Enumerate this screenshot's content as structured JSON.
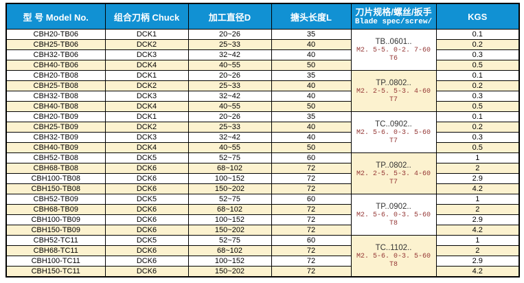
{
  "colors": {
    "header_bg": "#1191d3",
    "header_text": "#ffffff",
    "stripe_bg": "#fcf2cf",
    "spec_accent_text": "#943634",
    "border": "#000000"
  },
  "header": {
    "columns": [
      {
        "label": "型 号 Model No."
      },
      {
        "label": "组合刀柄 Chuck"
      },
      {
        "label": "加工直径D"
      },
      {
        "label": "搪头长度L"
      },
      {
        "label": "刀片规格/螺丝/扳手",
        "sublabel": "Blade spec/screw/"
      },
      {
        "label": "KGS"
      }
    ]
  },
  "table": {
    "rows": [
      {
        "model": "CBH20-TB06",
        "chuck": "DCK1",
        "diameter": "20~26",
        "length": "35",
        "kgs": "0.1"
      },
      {
        "model": "CBH25-TB06",
        "chuck": "DCK2",
        "diameter": "25~33",
        "length": "40",
        "kgs": "0.2"
      },
      {
        "model": "CBH32-TB06",
        "chuck": "DCK3",
        "diameter": "32~42",
        "length": "40",
        "kgs": "0.3"
      },
      {
        "model": "CBH40-TB06",
        "chuck": "DCK4",
        "diameter": "40~55",
        "length": "50",
        "kgs": "0.5"
      },
      {
        "model": "CBH20-TB08",
        "chuck": "DCK1",
        "diameter": "20~26",
        "length": "35",
        "kgs": "0.1"
      },
      {
        "model": "CBH25-TB08",
        "chuck": "DCK2",
        "diameter": "25~33",
        "length": "40",
        "kgs": "0.2"
      },
      {
        "model": "CBH32-TB08",
        "chuck": "DCK3",
        "diameter": "32~42",
        "length": "40",
        "kgs": "0.3"
      },
      {
        "model": "CBH40-TB08",
        "chuck": "DCK4",
        "diameter": "40~55",
        "length": "50",
        "kgs": "0.5"
      },
      {
        "model": "CBH20-TB09",
        "chuck": "DCK1",
        "diameter": "20~26",
        "length": "35",
        "kgs": "0.1"
      },
      {
        "model": "CBH25-TB09",
        "chuck": "DCK2",
        "diameter": "25~33",
        "length": "40",
        "kgs": "0.2"
      },
      {
        "model": "CBH32-TB09",
        "chuck": "DCK3",
        "diameter": "32~42",
        "length": "40",
        "kgs": "0.3"
      },
      {
        "model": "CBH40-TB09",
        "chuck": "DCK4",
        "diameter": "40~55",
        "length": "50",
        "kgs": "0.5"
      },
      {
        "model": "CBH52-TB08",
        "chuck": "DCK5",
        "diameter": "52~75",
        "length": "60",
        "kgs": "1"
      },
      {
        "model": "CBH68-TB08",
        "chuck": "DCK6",
        "diameter": "68~102",
        "length": "72",
        "kgs": "2"
      },
      {
        "model": "CBH100-TB08",
        "chuck": "DCK6",
        "diameter": "100~152",
        "length": "72",
        "kgs": "2.9"
      },
      {
        "model": "CBH150-TB08",
        "chuck": "DCK6",
        "diameter": "150~202",
        "length": "72",
        "kgs": "4.2"
      },
      {
        "model": "CBH52-TB09",
        "chuck": "DCK5",
        "diameter": "52~75",
        "length": "60",
        "kgs": "1"
      },
      {
        "model": "CBH68-TB09",
        "chuck": "DCK6",
        "diameter": "68~102",
        "length": "72",
        "kgs": "2"
      },
      {
        "model": "CBH100-TB09",
        "chuck": "DCK6",
        "diameter": "100~152",
        "length": "72",
        "kgs": "2.9"
      },
      {
        "model": "CBH150-TB09",
        "chuck": "DCK6",
        "diameter": "150~202",
        "length": "72",
        "kgs": "4.2"
      },
      {
        "model": "CBH52-TC11",
        "chuck": "DCK5",
        "diameter": "52~75",
        "length": "60",
        "kgs": "1"
      },
      {
        "model": "CBH68-TC11",
        "chuck": "DCK6",
        "diameter": "68~102",
        "length": "72",
        "kgs": "2"
      },
      {
        "model": "CBH100-TC11",
        "chuck": "DCK6",
        "diameter": "100~152",
        "length": "72",
        "kgs": "2.9"
      },
      {
        "model": "CBH150-TC11",
        "chuck": "DCK6",
        "diameter": "150~202",
        "length": "72",
        "kgs": "4.2"
      }
    ],
    "spec_groups": [
      {
        "name": "TB..0601..",
        "screw": "M2. 5-5. 0-2. 7-60",
        "wrench": "T6"
      },
      {
        "name": "TP..0802..",
        "screw": "M2. 2-5. 5-3. 4-60",
        "wrench": "T7"
      },
      {
        "name": "TC..0902..",
        "screw": "M2. 5-6. 0-3. 5-60",
        "wrench": "T7"
      },
      {
        "name": "TP..0802..",
        "screw": "M2. 2-5. 5-3. 4-60",
        "wrench": "T7"
      },
      {
        "name": "TP..0902..",
        "screw": "M2. 5-6. 0-3. 5-60",
        "wrench": "T8"
      },
      {
        "name": "TC..1102..",
        "screw": "M2. 5-6. 0-3. 5-60",
        "wrench": "T8"
      }
    ]
  }
}
